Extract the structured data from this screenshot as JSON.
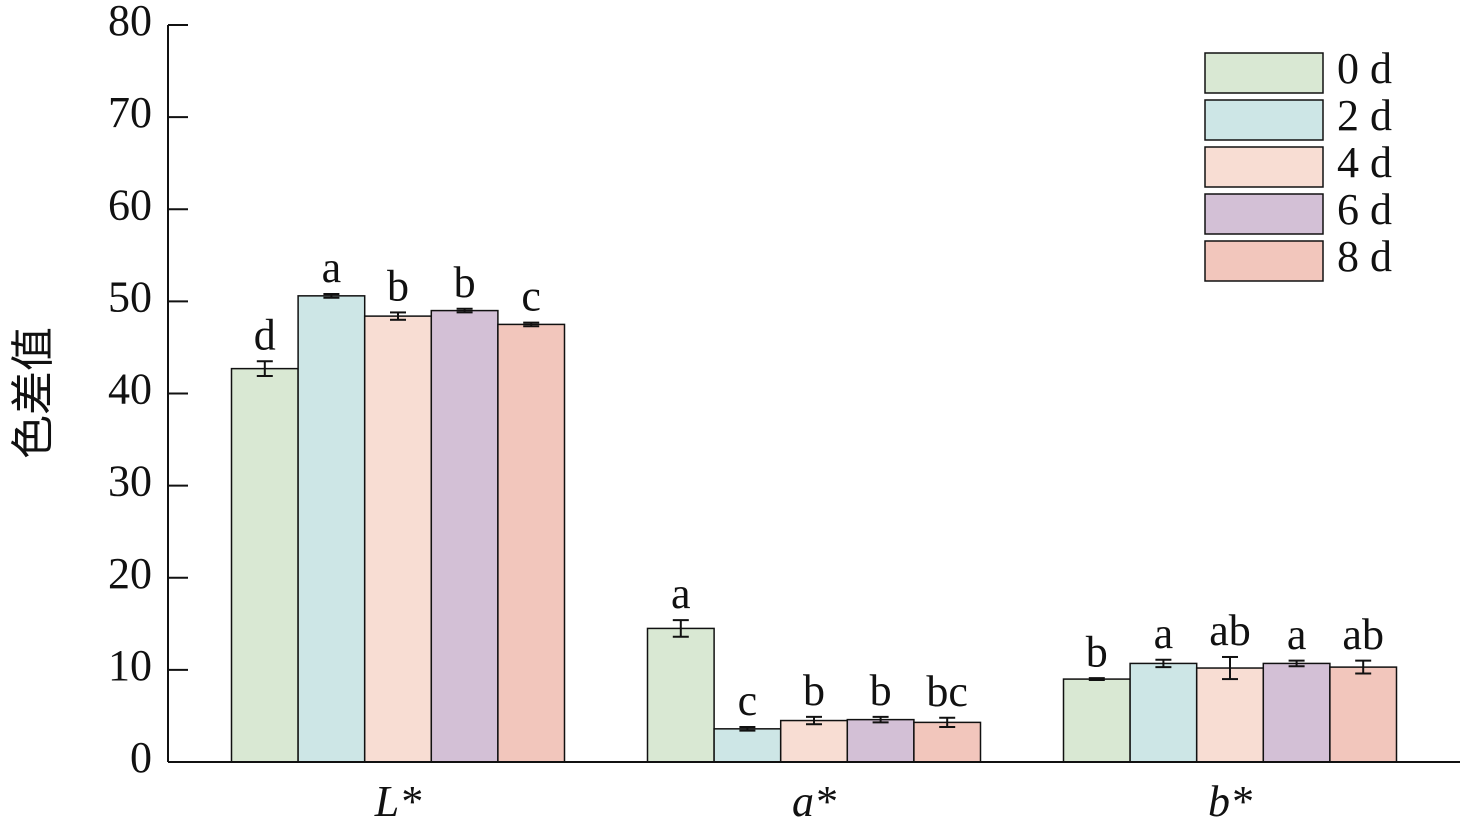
{
  "chart_data": {
    "type": "bar",
    "y_label": "色差值",
    "categories": [
      "L*",
      "a*",
      "b*"
    ],
    "ylim": [
      0,
      80
    ],
    "yticks": [
      0,
      10,
      20,
      30,
      40,
      50,
      60,
      70,
      80
    ],
    "legend": "top-right",
    "series": [
      {
        "name": "0 d",
        "color": "#d9e8d3",
        "values": [
          42.7,
          14.5,
          9.0
        ],
        "errors": [
          0.8,
          0.9,
          0.1
        ],
        "letters": [
          "d",
          "a",
          "b"
        ]
      },
      {
        "name": "2 d",
        "color": "#cde6e6",
        "values": [
          50.6,
          3.6,
          10.7
        ],
        "errors": [
          0.2,
          0.2,
          0.4
        ],
        "letters": [
          "a",
          "c",
          "a"
        ]
      },
      {
        "name": "4 d",
        "color": "#f8ddd3",
        "values": [
          48.4,
          4.5,
          10.2
        ],
        "errors": [
          0.4,
          0.4,
          1.2
        ],
        "letters": [
          "b",
          "b",
          "ab"
        ]
      },
      {
        "name": "6 d",
        "color": "#d3c0d6",
        "values": [
          49.0,
          4.6,
          10.7
        ],
        "errors": [
          0.2,
          0.3,
          0.3
        ],
        "letters": [
          "b",
          "b",
          "a"
        ]
      },
      {
        "name": "8 d",
        "color": "#f2c6bc",
        "values": [
          47.5,
          4.3,
          10.3
        ],
        "errors": [
          0.2,
          0.5,
          0.7
        ],
        "letters": [
          "c",
          "bc",
          "ab"
        ]
      }
    ]
  }
}
